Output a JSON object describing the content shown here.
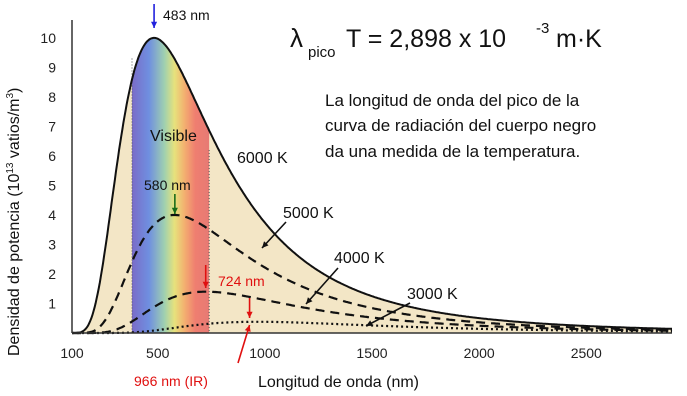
{
  "chart_data": {
    "type": "line",
    "xlabel": "Longitud de onda (nm)",
    "ylabel": "Densidad de potencia (10¹³ vatios/m³)",
    "xlim": [
      100,
      2900
    ],
    "ylim": [
      0,
      10.2
    ],
    "x_ticks": [
      100,
      500,
      1000,
      1500,
      2000,
      2500
    ],
    "y_ticks": [
      1,
      2,
      3,
      4,
      5,
      6,
      7,
      8,
      9,
      10
    ],
    "grid": false,
    "visible_band": {
      "label": "Visible",
      "range": [
        380,
        740
      ]
    },
    "series": [
      {
        "name": "6000 K",
        "temperature": 6000,
        "peak_nm": 483,
        "peak_value": 10,
        "style": "solid"
      },
      {
        "name": "5000 K",
        "temperature": 5000,
        "peak_nm": 580,
        "peak_value": 4.0,
        "style": "dashed"
      },
      {
        "name": "4000 K",
        "temperature": 4000,
        "peak_nm": 724,
        "peak_value": 1.4,
        "style": "dashed"
      },
      {
        "name": "3000 K",
        "temperature": 3000,
        "peak_nm": 966,
        "peak_value": 0.38,
        "style": "dotted"
      }
    ],
    "annotations": [
      {
        "text": "483 nm",
        "x": 483,
        "color": "#2222dd"
      },
      {
        "text": "580 nm",
        "x": 580,
        "color": "#1a6b1a"
      },
      {
        "text": "724 nm",
        "x": 724,
        "color": "#e01010"
      },
      {
        "text": "966 nm (IR)",
        "x": 966,
        "color": "#e01010"
      }
    ],
    "equation": {
      "lambda": "λ",
      "sub": "pico",
      "main": "T = 2,898  x 10",
      "exp": "-3",
      "unit": " m·K"
    },
    "description": [
      "La longitud de onda del pico de la",
      "curva de radiación del cuerpo negro",
      "da una medida de la temperatura."
    ],
    "colors": {
      "curve": "#111111",
      "shade": "#f3e6c6",
      "blue_arrow": "#2222dd",
      "green_arrow": "#1a6b1a",
      "red_arrow": "#e01010"
    }
  }
}
